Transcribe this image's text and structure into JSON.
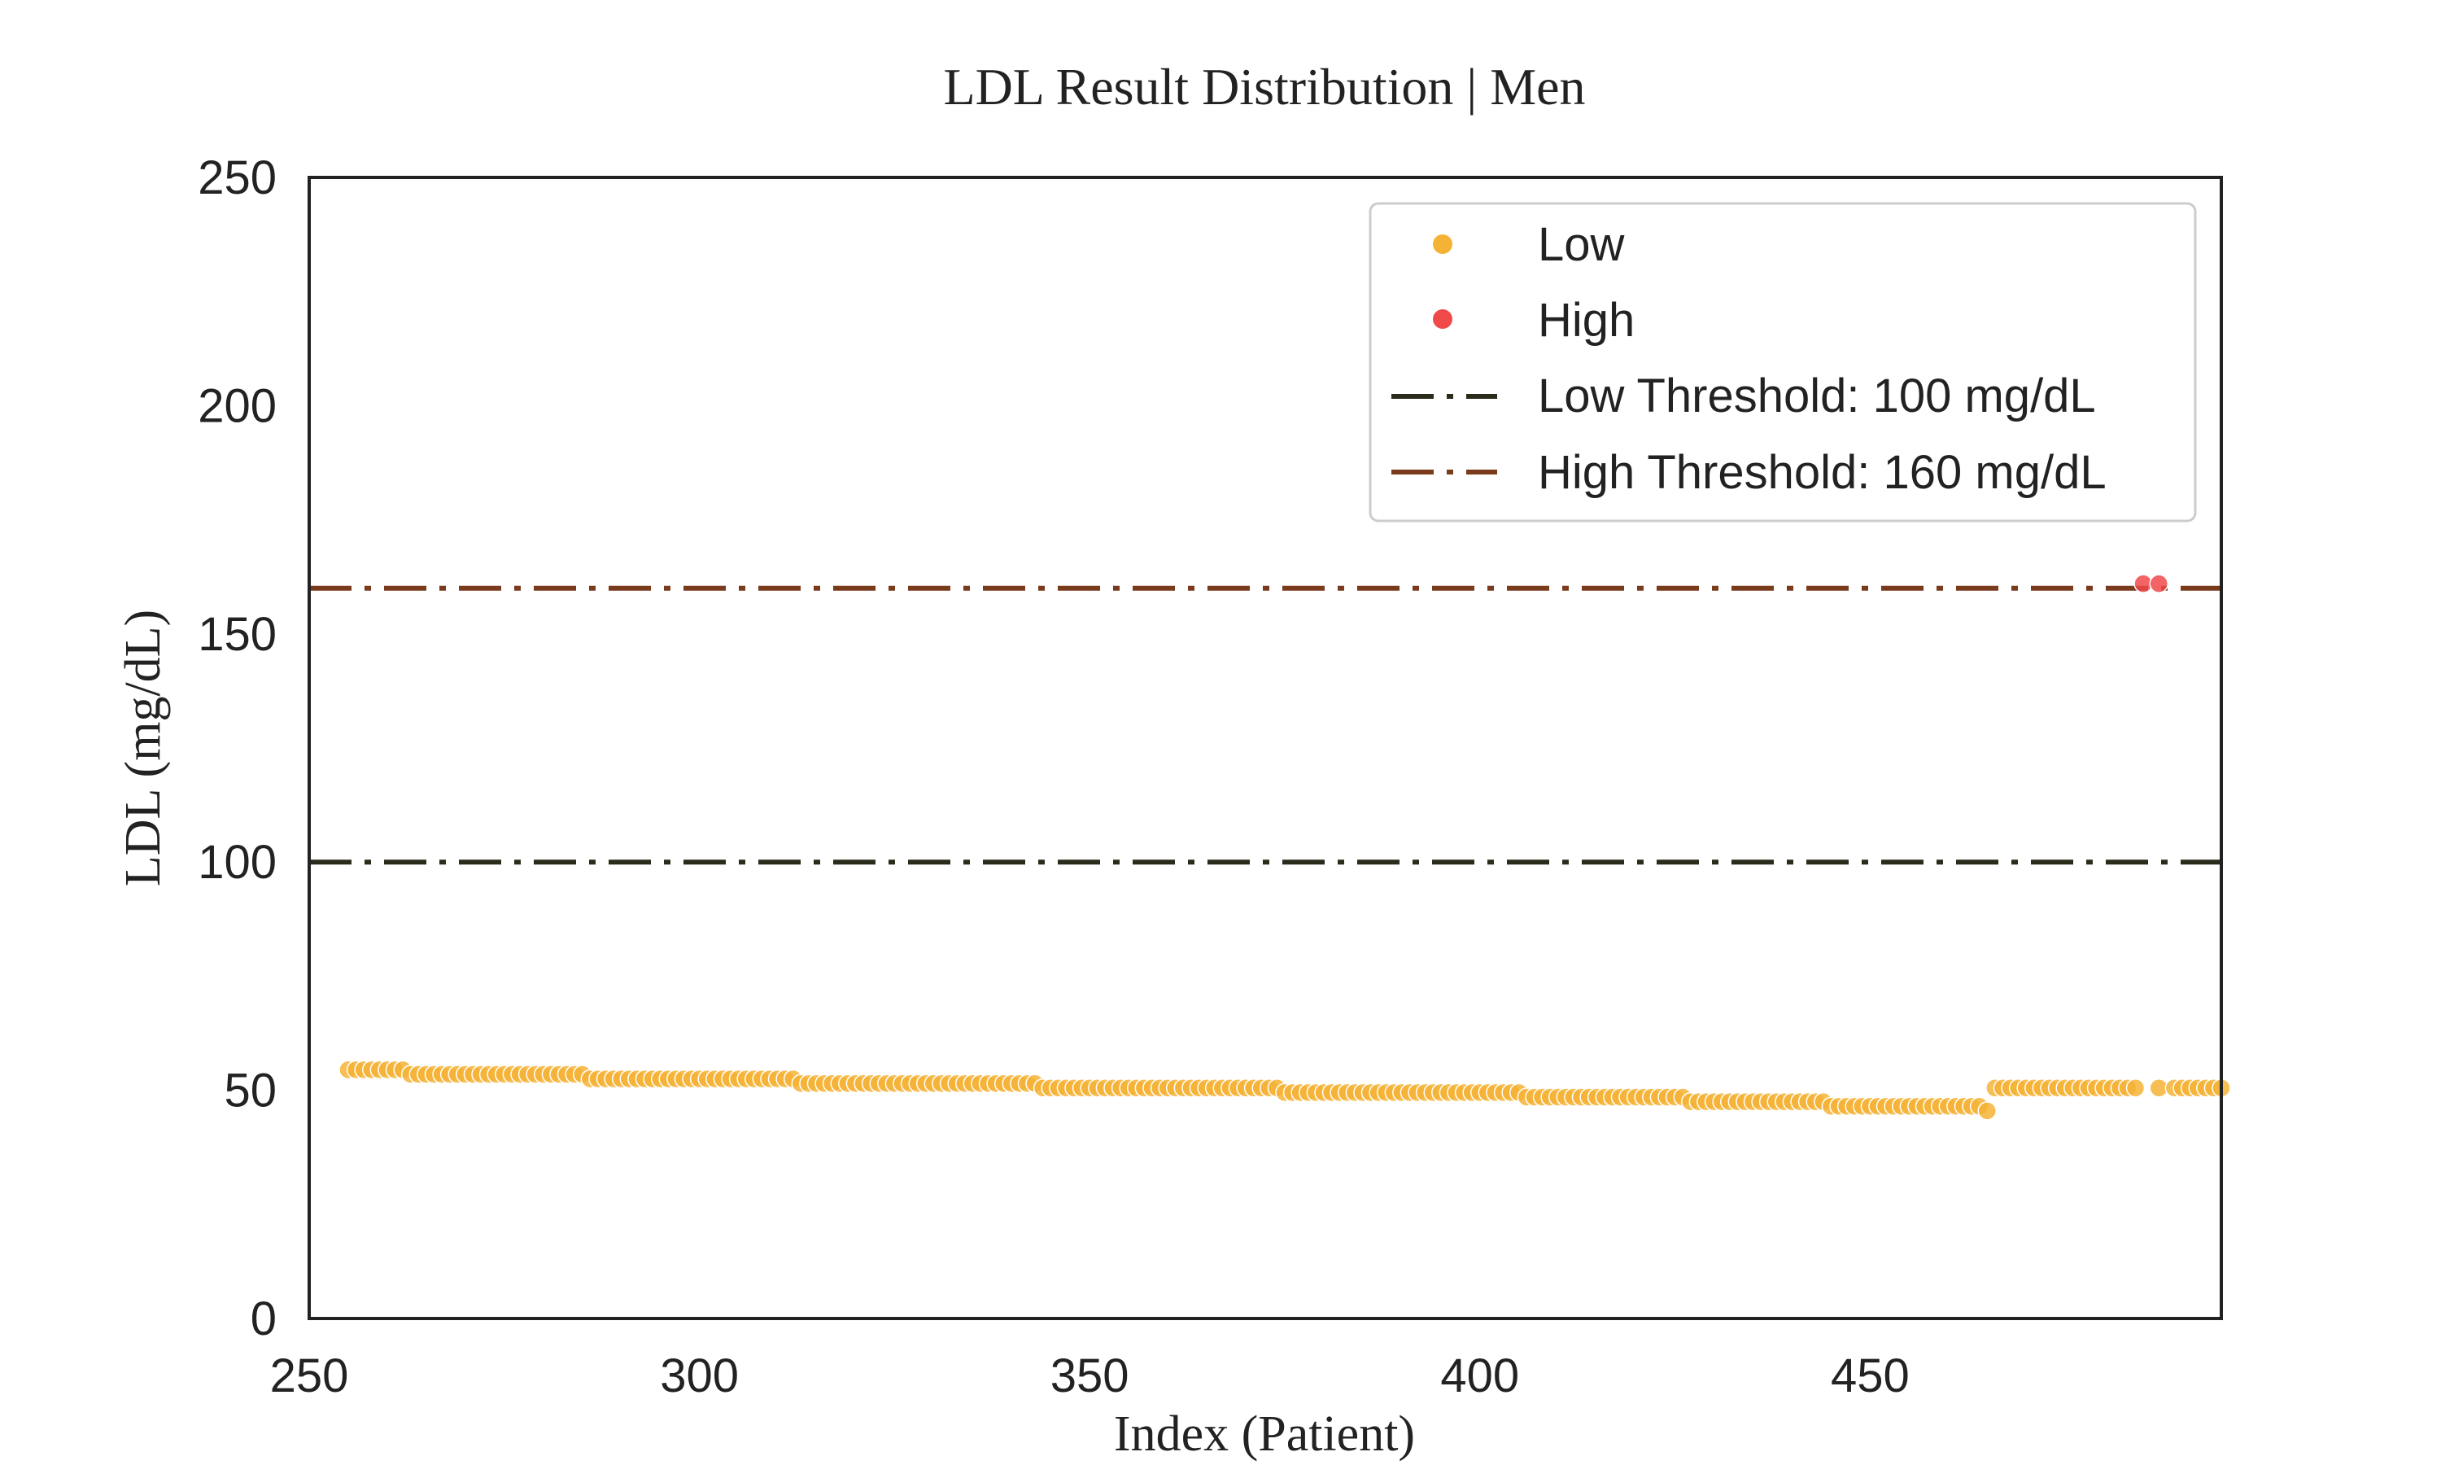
{
  "chart_data": {
    "type": "scatter",
    "title": "LDL Result Distribution | Men",
    "xlabel": "Index (Patient)",
    "ylabel": "LDL (mg/dL)",
    "xlim": [
      250,
      495
    ],
    "ylim": [
      0,
      250
    ],
    "x_ticks": [
      "250",
      "300",
      "350",
      "400",
      "450"
    ],
    "y_ticks": [
      "0",
      "50",
      "100",
      "150",
      "200",
      "250"
    ],
    "grid": false,
    "legend_placement": "top-right",
    "series": [
      {
        "name": "Low",
        "color": "#f5b335",
        "segments": [
          {
            "x_start": 255,
            "x_end": 262,
            "y": 54.5
          },
          {
            "x_start": 263,
            "x_end": 285,
            "y": 53.5
          },
          {
            "x_start": 286,
            "x_end": 312,
            "y": 52.5
          },
          {
            "x_start": 313,
            "x_end": 343,
            "y": 51.5
          },
          {
            "x_start": 344,
            "x_end": 374,
            "y": 50.5
          },
          {
            "x_start": 375,
            "x_end": 405,
            "y": 49.5
          },
          {
            "x_start": 406,
            "x_end": 426,
            "y": 48.5
          },
          {
            "x_start": 427,
            "x_end": 444,
            "y": 47.5
          },
          {
            "x_start": 445,
            "x_end": 464,
            "y": 46.5
          },
          {
            "x_start": 465,
            "x_end": 465,
            "y": 45.5
          },
          {
            "x_start": 466,
            "x_end": 484,
            "y": 50.5
          },
          {
            "x_start": 487,
            "x_end": 487,
            "y": 50.5
          },
          {
            "x_start": 489,
            "x_end": 495,
            "y": 50.5
          }
        ]
      },
      {
        "name": "High",
        "color": "#f0494a",
        "points": [
          [
            485,
            161
          ],
          [
            487,
            161
          ]
        ]
      }
    ],
    "reference_lines": [
      {
        "name": "Low Threshold: 100 mg/dL",
        "y": 100,
        "color": "#2b2b1b"
      },
      {
        "name": "High Threshold: 160 mg/dL",
        "y": 160,
        "color": "#7a3a1c"
      }
    ]
  }
}
